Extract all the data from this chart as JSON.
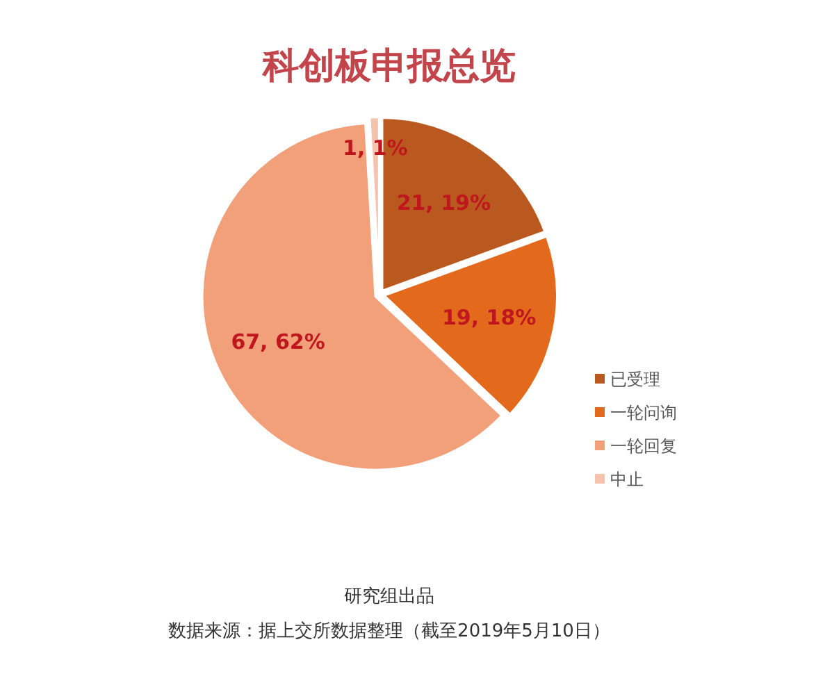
{
  "chart_data": {
    "type": "pie",
    "title": "科创板申报总览",
    "categories": [
      "已受理",
      "一轮问询",
      "一轮回复",
      "中止"
    ],
    "values": [
      21,
      19,
      67,
      1
    ],
    "value_labels": [
      "21, 19%",
      "19, 18%",
      "67, 62%",
      "1, 1%"
    ],
    "colors": [
      "#b9591f",
      "#e3691d",
      "#f1a07a",
      "#f4c3ae"
    ],
    "legend": "right",
    "annotations": [
      "研究组出品",
      "数据来源：据上交所数据整理（截至2019年5月10日）"
    ]
  }
}
